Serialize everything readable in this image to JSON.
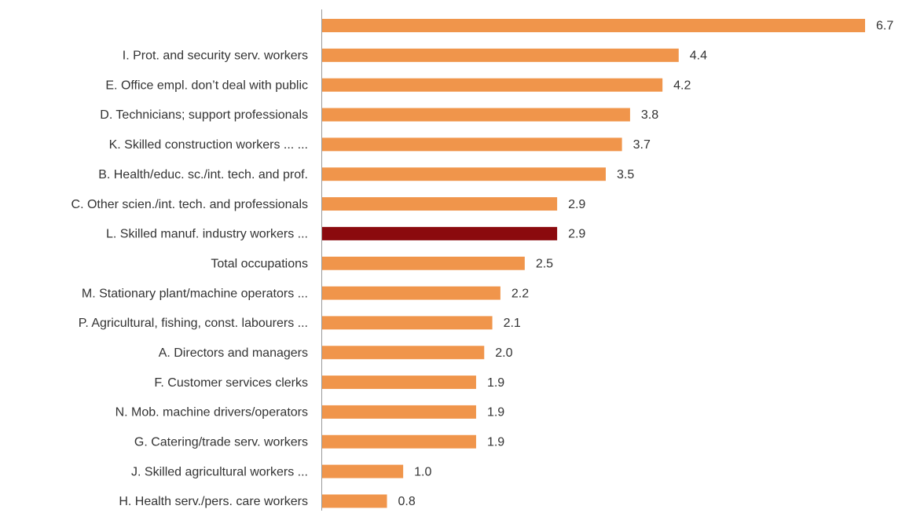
{
  "chart_data": {
    "type": "bar",
    "orientation": "horizontal",
    "categories": [
      null,
      "I. Prot. and security serv. workers",
      "E. Office empl. don’t deal with public",
      "D. Technicians; support professionals",
      "K. Skilled construction workers ... ...",
      "B. Health/educ. sc./int. tech. and prof.",
      "C. Other scien./int. tech. and professionals",
      "L. Skilled manuf. industry workers ...",
      "Total occupations",
      "M. Stationary plant/machine operators ...",
      "P. Agricultural, fishing, const. labourers ...",
      "A. Directors and managers",
      "F. Customer services clerks",
      "N. Mob. machine drivers/operators",
      "G. Catering/trade serv. workers",
      "J. Skilled agricultural workers ...",
      "H. Health serv./pers. care workers"
    ],
    "values": [
      6.7,
      4.4,
      4.2,
      3.8,
      3.7,
      3.5,
      2.9,
      2.9,
      2.5,
      2.2,
      2.1,
      2.0,
      1.9,
      1.9,
      1.9,
      1.0,
      0.8
    ],
    "value_labels": [
      "6.7",
      "4.4",
      "4.2",
      "3.8",
      "3.7",
      "3.5",
      "2.9",
      "2.9",
      "2.5",
      "2.2",
      "2.1",
      "2.0",
      "1.9",
      "1.9",
      "1.9",
      "1.0",
      "0.8"
    ],
    "colors": [
      "#f0954b",
      "#f0954b",
      "#f0954b",
      "#f0954b",
      "#f0954b",
      "#f0954b",
      "#f0954b",
      "#8b0a0e",
      "#f0954b",
      "#f0954b",
      "#f0954b",
      "#f0954b",
      "#f0954b",
      "#f0954b",
      "#f0954b",
      "#f0954b",
      "#f0954b"
    ]
  }
}
